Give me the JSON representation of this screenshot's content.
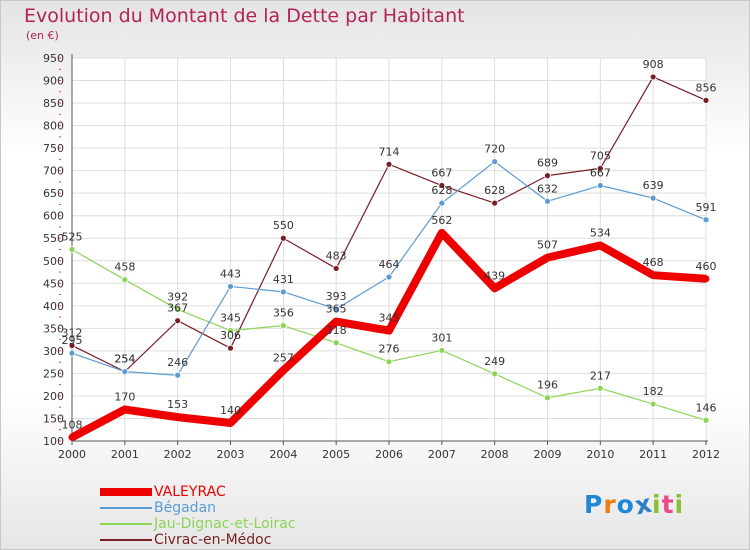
{
  "chart_data": {
    "type": "line",
    "title": "Evolution du Montant de la Dette par Habitant",
    "subtitle": "(en €)",
    "x": [
      "2000",
      "2001",
      "2002",
      "2003",
      "2004",
      "2005",
      "2006",
      "2007",
      "2008",
      "2009",
      "2010",
      "2011",
      "2012"
    ],
    "ylim": [
      100,
      950
    ],
    "yticks": [
      100,
      150,
      200,
      250,
      300,
      350,
      400,
      450,
      500,
      550,
      600,
      650,
      700,
      750,
      800,
      850,
      900,
      950
    ],
    "grid": true,
    "legend_position": "bottom-left",
    "series": [
      {
        "name": "VALEYRAC",
        "color": "#ee0000",
        "values": [
          108,
          170,
          153,
          140,
          257,
          365,
          345,
          562,
          439,
          507,
          534,
          468,
          460
        ]
      },
      {
        "name": "Bégadan",
        "color": "#5b9bd5",
        "values": [
          295,
          254,
          246,
          443,
          431,
          393,
          464,
          628,
          720,
          632,
          667,
          639,
          591
        ]
      },
      {
        "name": "Jau-Dignac-et-Loirac",
        "color": "#8cd454",
        "values": [
          525,
          458,
          392,
          345,
          356,
          318,
          276,
          301,
          249,
          196,
          217,
          182,
          146
        ]
      },
      {
        "name": "Civrac-en-Médoc",
        "color": "#7a1e24",
        "values": [
          312,
          254,
          367,
          306,
          550,
          483,
          714,
          667,
          628,
          689,
          705,
          908,
          856
        ]
      }
    ]
  },
  "logo": {
    "text": "Proxiti",
    "colors": [
      "#1e87d6",
      "#f07c16",
      "#1e87d6",
      "#2b7fc6",
      "#88c032",
      "#e84a8a",
      "#88c032"
    ]
  }
}
